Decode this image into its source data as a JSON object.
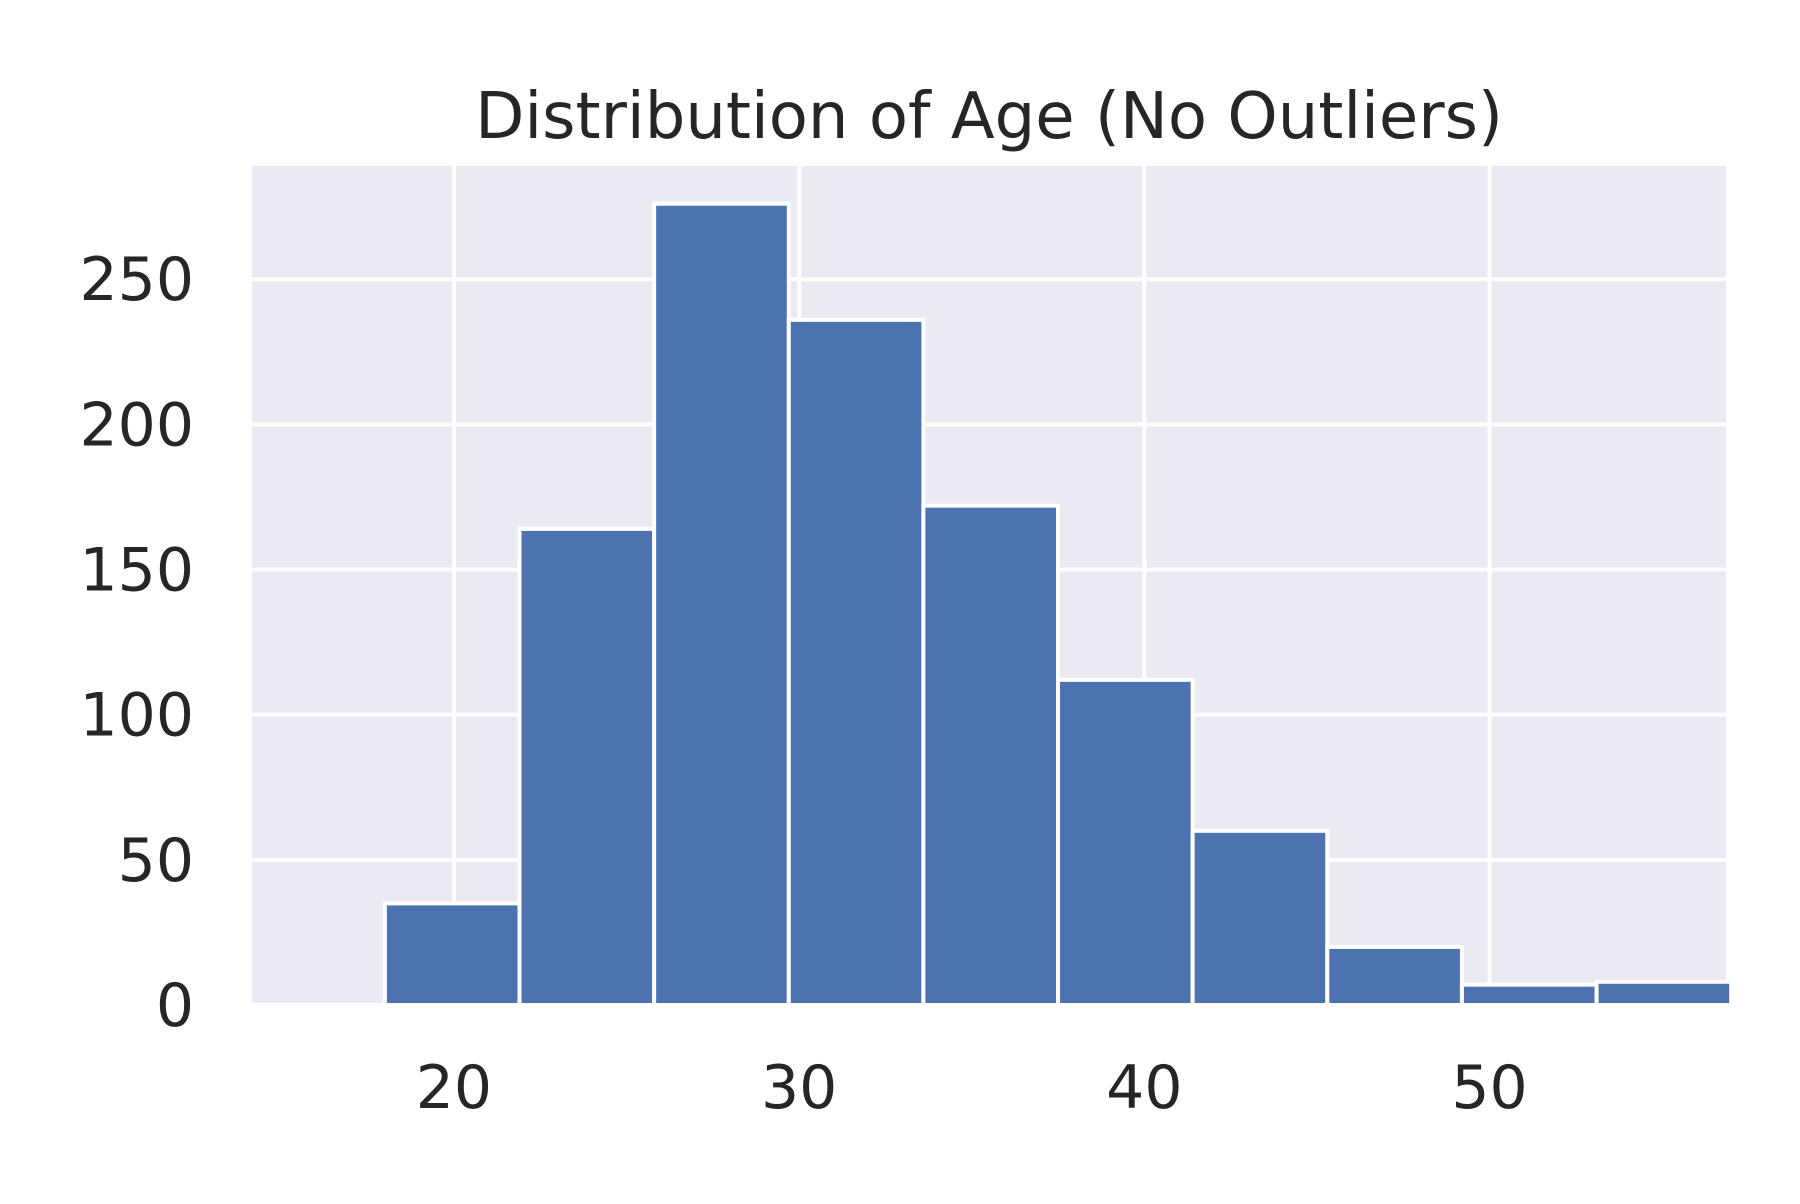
{
  "chart_data": {
    "type": "bar",
    "variant": "histogram",
    "title": "Distribution of Age (No Outliers)",
    "xlabel": "",
    "ylabel": "",
    "bins": [
      {
        "x0": 18.0,
        "x1": 21.9,
        "count": 35
      },
      {
        "x0": 21.9,
        "x1": 25.8,
        "count": 164
      },
      {
        "x0": 25.8,
        "x1": 29.7,
        "count": 276
      },
      {
        "x0": 29.7,
        "x1": 33.6,
        "count": 236
      },
      {
        "x0": 33.6,
        "x1": 37.5,
        "count": 172
      },
      {
        "x0": 37.5,
        "x1": 41.4,
        "count": 112
      },
      {
        "x0": 41.4,
        "x1": 45.3,
        "count": 60
      },
      {
        "x0": 45.3,
        "x1": 49.2,
        "count": 20
      },
      {
        "x0": 49.2,
        "x1": 53.1,
        "count": 7
      },
      {
        "x0": 53.1,
        "x1": 57.0,
        "count": 8
      }
    ],
    "xlim": [
      14.15,
      56.85
    ],
    "ylim": [
      0,
      289
    ],
    "xticks": [
      20,
      30,
      40,
      50
    ],
    "yticks": [
      0,
      50,
      100,
      150,
      200,
      250
    ],
    "xtick_labels": [
      "20",
      "30",
      "40",
      "50"
    ],
    "ytick_labels": [
      "0",
      "50",
      "100",
      "150",
      "200",
      "250"
    ],
    "grid": true,
    "colors": {
      "bar": "#4c72b0",
      "plot_background": "#eaeaf2",
      "grid": "#ffffff",
      "bar_edge": "#ffffff",
      "text": "#262626"
    }
  }
}
